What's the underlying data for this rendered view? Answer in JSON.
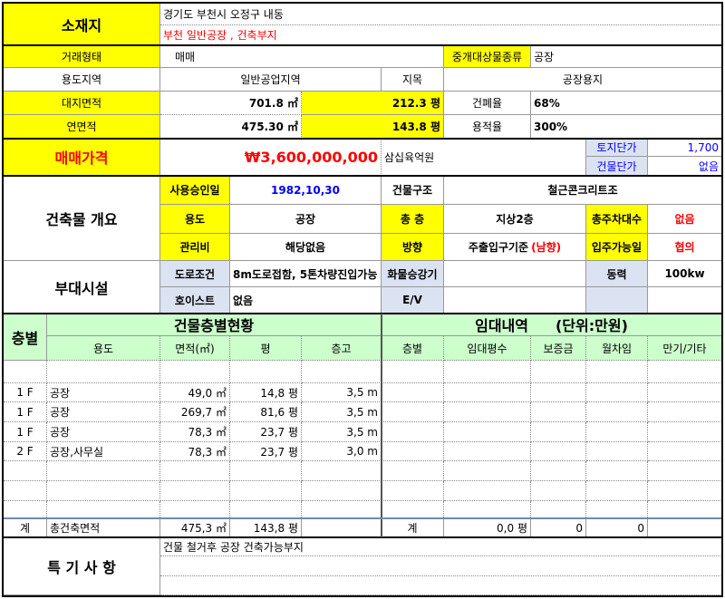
{
  "location": {
    "label": "소재지",
    "address": "경기도 부천시 오정구 내동",
    "subtitle": "부천 일반공장 , 건축부지"
  },
  "deal": {
    "label": "거래형태",
    "value": "매매",
    "type_label": "중개대상물종류",
    "type_value": "공장"
  },
  "zoning": {
    "label": "용도지역",
    "value": "일반공업지역",
    "jimok_label": "지목",
    "jimok_value": "공장용지"
  },
  "land_area": {
    "label": "대지면적",
    "sqm": "701.8 ㎡",
    "pyeong": "212.3 평",
    "bcr_label": "건폐율",
    "bcr_value": "68%"
  },
  "floor_area": {
    "label": "연면적",
    "sqm": "475.30 ㎡",
    "pyeong": "143.8 평",
    "far_label": "용적율",
    "far_value": "300%"
  },
  "price": {
    "label": "매매가격",
    "value": "₩3,600,000,000",
    "korean": "삼십육억원",
    "land_unit_label": "토지단가",
    "land_unit_value": "1,700",
    "bldg_unit_label": "건물단가",
    "bldg_unit_value": "없음"
  },
  "building": {
    "label": "건축물 개요",
    "approval_label": "사용승인일",
    "approval_value": "1982,10,30",
    "structure_label": "건물구조",
    "structure_value": "철근콘크리트조",
    "use_label": "용도",
    "use_value": "공장",
    "floors_label": "총 층",
    "floors_value": "지상2층",
    "parking_label": "총주차대수",
    "parking_value": "없음",
    "mgmt_label": "관리비",
    "mgmt_value": "해당없음",
    "direction_label": "방향",
    "direction_value": "주출입구기준",
    "direction_note": "(남향)",
    "movein_label": "입주가능일",
    "movein_value": "협의"
  },
  "facilities": {
    "label": "부대시설",
    "road_label": "도로조건",
    "road_value": "8m도로접함, 5톤차량진입가능",
    "freight_label": "화물승강기",
    "freight_value": "",
    "power_label": "동력",
    "power_value": "100kw",
    "hoist_label": "호이스트",
    "hoist_value": "없음",
    "ev_label": "E/V",
    "ev_value": ""
  },
  "floors_table": {
    "floor_header": "층별",
    "title": "건물층별현황",
    "columns": [
      "용도",
      "면적(㎡)",
      "평",
      "층고"
    ],
    "rows": [
      {
        "floor": "",
        "use": "",
        "sqm": "",
        "pyeong": "",
        "height": ""
      },
      {
        "floor": "1 F",
        "use": "공장",
        "sqm": "49,0 ㎡",
        "pyeong": "14,8 평",
        "height": "3,5 m"
      },
      {
        "floor": "1 F",
        "use": "공장",
        "sqm": "269,7 ㎡",
        "pyeong": "81,6 평",
        "height": "3,5 m"
      },
      {
        "floor": "1 F",
        "use": "공장",
        "sqm": "78,3 ㎡",
        "pyeong": "23,7 평",
        "height": "3,5 m"
      },
      {
        "floor": "2 F",
        "use": "공장,사무실",
        "sqm": "78,3 ㎡",
        "pyeong": "23,7 평",
        "height": "3,0 m"
      },
      {
        "floor": "",
        "use": "",
        "sqm": "",
        "pyeong": "",
        "height": ""
      },
      {
        "floor": "",
        "use": "",
        "sqm": "",
        "pyeong": "",
        "height": ""
      },
      {
        "floor": "",
        "use": "",
        "sqm": "",
        "pyeong": "",
        "height": ""
      }
    ],
    "total": {
      "floor": "계",
      "use": "총건축면적",
      "sqm": "475,3 ㎡",
      "pyeong": "143,8 평",
      "height": ""
    }
  },
  "lease_table": {
    "title": "임대내역",
    "unit": "(단위:만원)",
    "columns": [
      "층별",
      "임대평수",
      "보증금",
      "월차임",
      "만기/기타"
    ],
    "total": {
      "floor": "계",
      "pyeong": "0,0 평",
      "deposit": "0",
      "rent": "0",
      "etc": ""
    }
  },
  "remarks": {
    "label": "특 기 사 항",
    "lines": [
      "건물 철거후 공장 건축가능부지",
      "",
      ""
    ]
  },
  "colors": {
    "label_yellow": "#ffff00",
    "header_green": "#ccffcc",
    "label_lavender": "#dbe2f1",
    "accent_red": "#ff0000",
    "accent_blue": "#0000ff"
  }
}
